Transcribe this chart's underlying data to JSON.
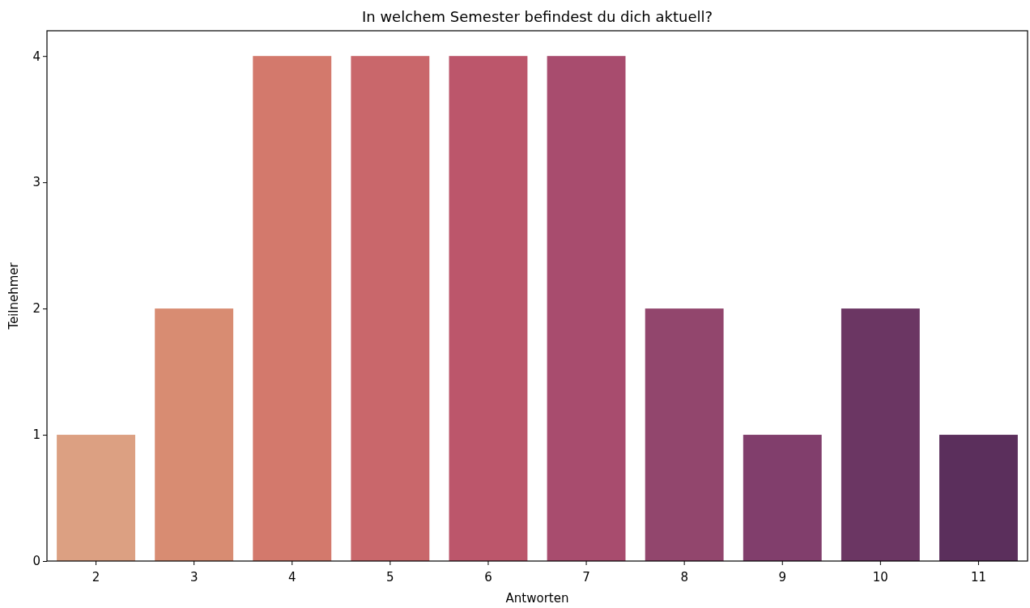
{
  "chart_data": {
    "type": "bar",
    "title": "In welchem Semester befindest du dich aktuell?",
    "xlabel": "Antworten",
    "ylabel": "Teilnehmer",
    "categories": [
      "2",
      "3",
      "4",
      "5",
      "6",
      "7",
      "8",
      "9",
      "10",
      "11"
    ],
    "values": [
      1,
      2,
      4,
      4,
      4,
      4,
      2,
      1,
      2,
      1
    ],
    "colors": [
      "#dca082",
      "#d88c72",
      "#d3796c",
      "#c9676b",
      "#bc566b",
      "#a84c6e",
      "#92466d",
      "#813e6c",
      "#6b3663",
      "#5b2f5c"
    ],
    "ylim": [
      0,
      4.2
    ],
    "yticks": [
      0,
      1,
      2,
      3,
      4
    ],
    "grid": false
  }
}
